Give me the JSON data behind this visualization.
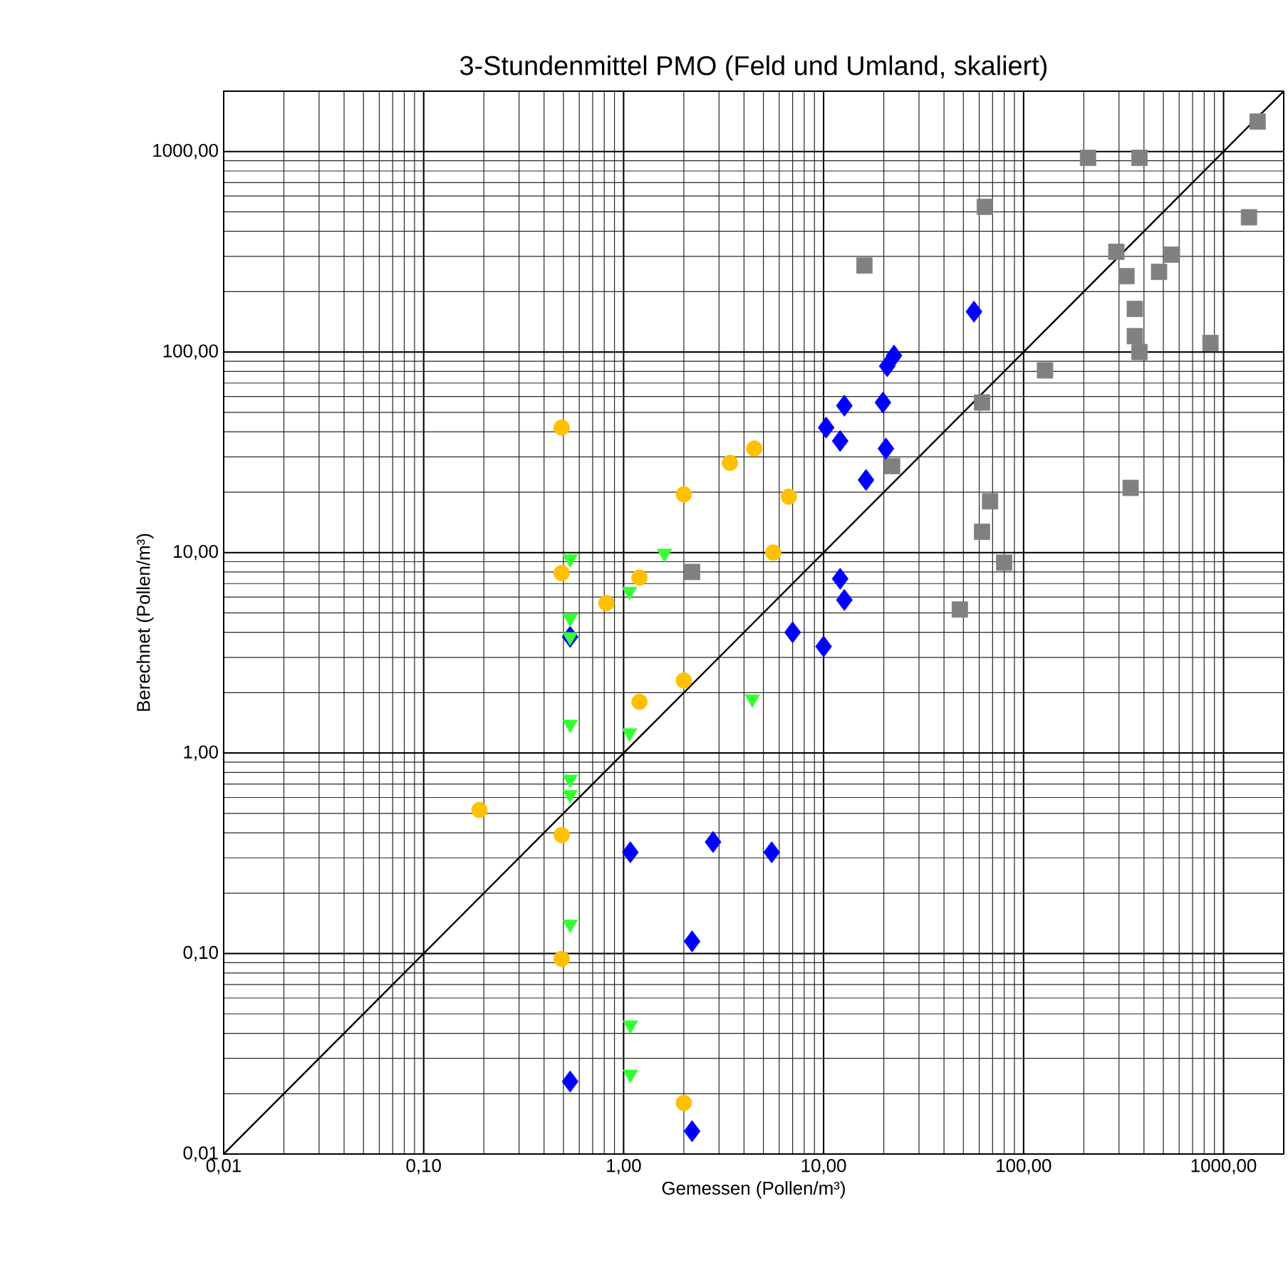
{
  "chart_data": {
    "type": "scatter",
    "title": "3-Stundenmittel PMO (Feld und Umland, skaliert)",
    "xlabel": "Gemessen (Pollen/m³)",
    "ylabel": "Berechnet (Pollen/m³)",
    "log": "xy",
    "grid": true,
    "xlim": [
      0.01,
      2000
    ],
    "ylim": [
      0.01,
      2000
    ],
    "xticks": [
      {
        "value": 0.01,
        "label": "0,01"
      },
      {
        "value": 0.1,
        "label": "0,10"
      },
      {
        "value": 1,
        "label": "1,00"
      },
      {
        "value": 10,
        "label": "10,00"
      },
      {
        "value": 100,
        "label": "100,00"
      },
      {
        "value": 1000,
        "label": "1000,00"
      }
    ],
    "yticks": [
      {
        "value": 0.01,
        "label": "0,01"
      },
      {
        "value": 0.1,
        "label": "0,10"
      },
      {
        "value": 1,
        "label": "1,00"
      },
      {
        "value": 10,
        "label": "10,00"
      },
      {
        "value": 100,
        "label": "100,00"
      },
      {
        "value": 1000,
        "label": "1000,00"
      }
    ],
    "series": [
      {
        "type": "line",
        "color": "#000000",
        "marker": "none",
        "line_style": "solid",
        "x": [
          0.01,
          2000
        ],
        "values": [
          0.01,
          2000
        ]
      },
      {
        "color": "#808080",
        "marker": "square",
        "x": [
          2.2,
          1480,
          210,
          380,
          64,
          1340,
          16,
          291,
          552,
          327,
          476,
          360,
          360,
          380,
          860,
          128,
          62,
          22,
          343,
          68,
          62,
          80,
          48
        ],
        "values": [
          8.0,
          1410,
          930,
          930,
          530,
          470,
          270,
          316,
          306,
          239,
          251,
          164,
          120,
          100,
          111,
          81,
          56,
          27,
          21,
          18,
          12.7,
          8.9,
          5.2
        ]
      },
      {
        "color": "#ffc000",
        "marker": "circle",
        "x": [
          0.49,
          0.49,
          0.82,
          1.2,
          2.0,
          3.4,
          4.5,
          6.7,
          5.6,
          1.2,
          2.0,
          0.19,
          0.49,
          0.49,
          2.0
        ],
        "values": [
          42,
          7.9,
          5.6,
          7.5,
          19.5,
          28,
          33,
          19,
          10,
          1.8,
          2.3,
          0.52,
          0.39,
          0.094,
          0.018
        ]
      },
      {
        "color": "#0000ff",
        "marker": "diamond",
        "x": [
          0.54,
          1.08,
          2.8,
          5.5,
          2.2,
          0.54,
          2.2,
          7.0,
          10.0,
          12.1,
          12.7,
          22.5,
          20.8,
          56.5,
          12.7,
          19.8,
          10.3,
          12.1,
          20.5,
          16.3
        ],
        "values": [
          3.8,
          0.32,
          0.36,
          0.32,
          0.115,
          0.023,
          0.013,
          4.0,
          3.4,
          7.4,
          5.8,
          96,
          85,
          159,
          54,
          56,
          42,
          36,
          33,
          23
        ]
      },
      {
        "color": "#33ff33",
        "marker": "triangle",
        "x": [
          0.54,
          1.6,
          1.07,
          0.54,
          0.54,
          0.54,
          1.07,
          4.4,
          0.54,
          0.54,
          0.54,
          1.08,
          1.08
        ],
        "values": [
          9.3,
          9.9,
          6.4,
          4.7,
          3.8,
          1.39,
          1.26,
          1.86,
          0.74,
          0.62,
          0.14,
          0.044,
          0.025
        ]
      }
    ]
  }
}
